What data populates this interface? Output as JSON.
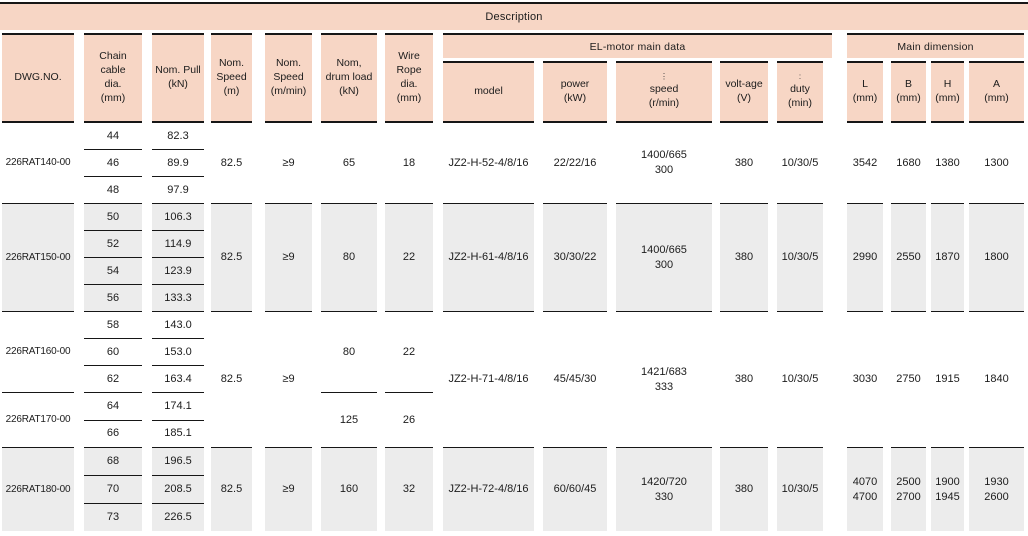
{
  "table": {
    "description_label": "Description",
    "groups": {
      "el_motor": "EL-motor main data",
      "main_dimension": "Main dimension"
    },
    "colors": {
      "header_pink": "#f7d6c5",
      "row_gray": "#ececec",
      "rule_black": "#161616"
    },
    "columns": [
      {
        "id": "dwg",
        "header": {
          "lines": [
            "DWG.NO."
          ]
        },
        "cells": [
          {
            "lines": [
              "226RAT140-00"
            ]
          },
          {
            "lines": [
              "226RAT150-00"
            ]
          },
          {
            "lines": [
              "226RAT160-00"
            ]
          },
          {
            "lines": [
              "226RAT170-00"
            ]
          },
          {
            "lines": [
              "226RAT180-00"
            ]
          }
        ]
      },
      {
        "id": "chain",
        "header": {
          "lines": [
            "Chain",
            "cable",
            "dia.",
            "(mm)"
          ]
        },
        "cells": [
          {
            "sub": [
              "44",
              "46",
              "48"
            ]
          },
          {
            "sub": [
              "50",
              "52",
              "54",
              "56"
            ]
          },
          {
            "sub": [
              "58",
              "60",
              "62"
            ]
          },
          {
            "sub": [
              "64",
              "66"
            ]
          },
          {
            "sub": [
              "68",
              "70",
              "73"
            ]
          }
        ]
      },
      {
        "id": "pull",
        "header": {
          "lines": [
            "Nom. Pull",
            "(kN)"
          ]
        },
        "cells": [
          {
            "sub": [
              "82.3",
              "89.9",
              "97.9"
            ]
          },
          {
            "sub": [
              "106.3",
              "114.9",
              "123.9",
              "133.3"
            ]
          },
          {
            "sub": [
              "143.0",
              "153.0",
              "163.4"
            ]
          },
          {
            "sub": [
              "174.1",
              "185.1"
            ]
          },
          {
            "sub": [
              "196.5",
              "208.5",
              "226.5"
            ]
          }
        ]
      },
      {
        "id": "speed_m",
        "header": {
          "lines": [
            "Nom.",
            "Speed",
            "(m)"
          ]
        },
        "cells": [
          {
            "lines": [
              "82.5"
            ]
          },
          {
            "lines": [
              "82.5"
            ]
          },
          {
            "lines": [
              "82.5"
            ]
          },
          {
            "lines": [
              "82.5"
            ]
          }
        ]
      },
      {
        "id": "speed_mmin",
        "header": {
          "lines": [
            "Nom.",
            "Speed",
            "(m/min)"
          ]
        },
        "cells": [
          {
            "lines": [
              "≥9"
            ]
          },
          {
            "lines": [
              "≥9"
            ]
          },
          {
            "lines": [
              "≥9"
            ]
          },
          {
            "lines": [
              "≥9"
            ]
          }
        ]
      },
      {
        "id": "drum",
        "header": {
          "lines": [
            "Nom,",
            "drum load",
            "(kN)"
          ]
        },
        "cells": [
          {
            "lines": [
              "65"
            ]
          },
          {
            "lines": [
              "80"
            ]
          },
          {
            "lines": [
              "80"
            ]
          },
          {
            "lines": [
              "125"
            ]
          },
          {
            "lines": [
              "160"
            ]
          }
        ]
      },
      {
        "id": "rope",
        "header": {
          "lines": [
            "Wire",
            "Rope",
            "dia.",
            "(mm)"
          ]
        },
        "cells": [
          {
            "lines": [
              "18"
            ]
          },
          {
            "lines": [
              "22"
            ]
          },
          {
            "lines": [
              "22"
            ]
          },
          {
            "lines": [
              "26"
            ]
          },
          {
            "lines": [
              "32"
            ]
          }
        ]
      },
      {
        "id": "model",
        "header": {
          "lines": [
            "model"
          ]
        },
        "cells": [
          {
            "lines": [
              "JZ2-H-52-4/8/16"
            ]
          },
          {
            "lines": [
              "JZ2-H-61-4/8/16"
            ]
          },
          {
            "lines": [
              "JZ2-H-71-4/8/16"
            ]
          },
          {
            "lines": [
              "JZ2-H-72-4/8/16"
            ]
          }
        ]
      },
      {
        "id": "power",
        "header": {
          "lines": [
            "power",
            "(kW)"
          ]
        },
        "cells": [
          {
            "lines": [
              "22/22/16"
            ]
          },
          {
            "lines": [
              "30/30/22"
            ]
          },
          {
            "lines": [
              "45/45/30"
            ]
          },
          {
            "lines": [
              "60/60/45"
            ]
          }
        ]
      },
      {
        "id": "speed_r",
        "header": {
          "pre": "⋮",
          "lines": [
            "speed",
            "(r/min)"
          ]
        },
        "cells": [
          {
            "lines": [
              "1400/665",
              "300"
            ]
          },
          {
            "lines": [
              "1400/665",
              "300"
            ]
          },
          {
            "lines": [
              "1421/683",
              "333"
            ]
          },
          {
            "lines": [
              "1420/720",
              "330"
            ]
          }
        ]
      },
      {
        "id": "volt",
        "header": {
          "lines": [
            "volt-age",
            "(V)"
          ]
        },
        "cells": [
          {
            "lines": [
              "380"
            ]
          },
          {
            "lines": [
              "380"
            ]
          },
          {
            "lines": [
              "380"
            ]
          },
          {
            "lines": [
              "380"
            ]
          }
        ]
      },
      {
        "id": "duty",
        "header": {
          "pre": ":",
          "lines": [
            "duty",
            "(min)"
          ]
        },
        "cells": [
          {
            "lines": [
              "10/30/5"
            ]
          },
          {
            "lines": [
              "10/30/5"
            ]
          },
          {
            "lines": [
              "10/30/5"
            ]
          },
          {
            "lines": [
              "10/30/5"
            ]
          }
        ]
      },
      {
        "id": "dim_l",
        "header": {
          "lines": [
            "L",
            "(mm)"
          ]
        },
        "cells": [
          {
            "lines": [
              "3542"
            ]
          },
          {
            "lines": [
              "2990"
            ]
          },
          {
            "lines": [
              "3030"
            ]
          },
          {
            "lines": [
              "4070",
              "4700"
            ]
          }
        ]
      },
      {
        "id": "dim_b",
        "header": {
          "lines": [
            "B",
            "(mm)"
          ]
        },
        "cells": [
          {
            "lines": [
              "1680"
            ]
          },
          {
            "lines": [
              "2550"
            ]
          },
          {
            "lines": [
              "2750"
            ]
          },
          {
            "lines": [
              "2500",
              "2700"
            ]
          }
        ]
      },
      {
        "id": "dim_h",
        "header": {
          "lines": [
            "H",
            "(mm)"
          ]
        },
        "cells": [
          {
            "lines": [
              "1380"
            ]
          },
          {
            "lines": [
              "1870"
            ]
          },
          {
            "lines": [
              "1915"
            ]
          },
          {
            "lines": [
              "1900",
              "1945"
            ]
          }
        ]
      },
      {
        "id": "dim_a",
        "header": {
          "lines": [
            "A",
            "(mm)"
          ]
        },
        "cells": [
          {
            "lines": [
              "1300"
            ]
          },
          {
            "lines": [
              "1800"
            ]
          },
          {
            "lines": [
              "1840"
            ]
          },
          {
            "lines": [
              "1930",
              "2600"
            ]
          }
        ]
      }
    ]
  }
}
